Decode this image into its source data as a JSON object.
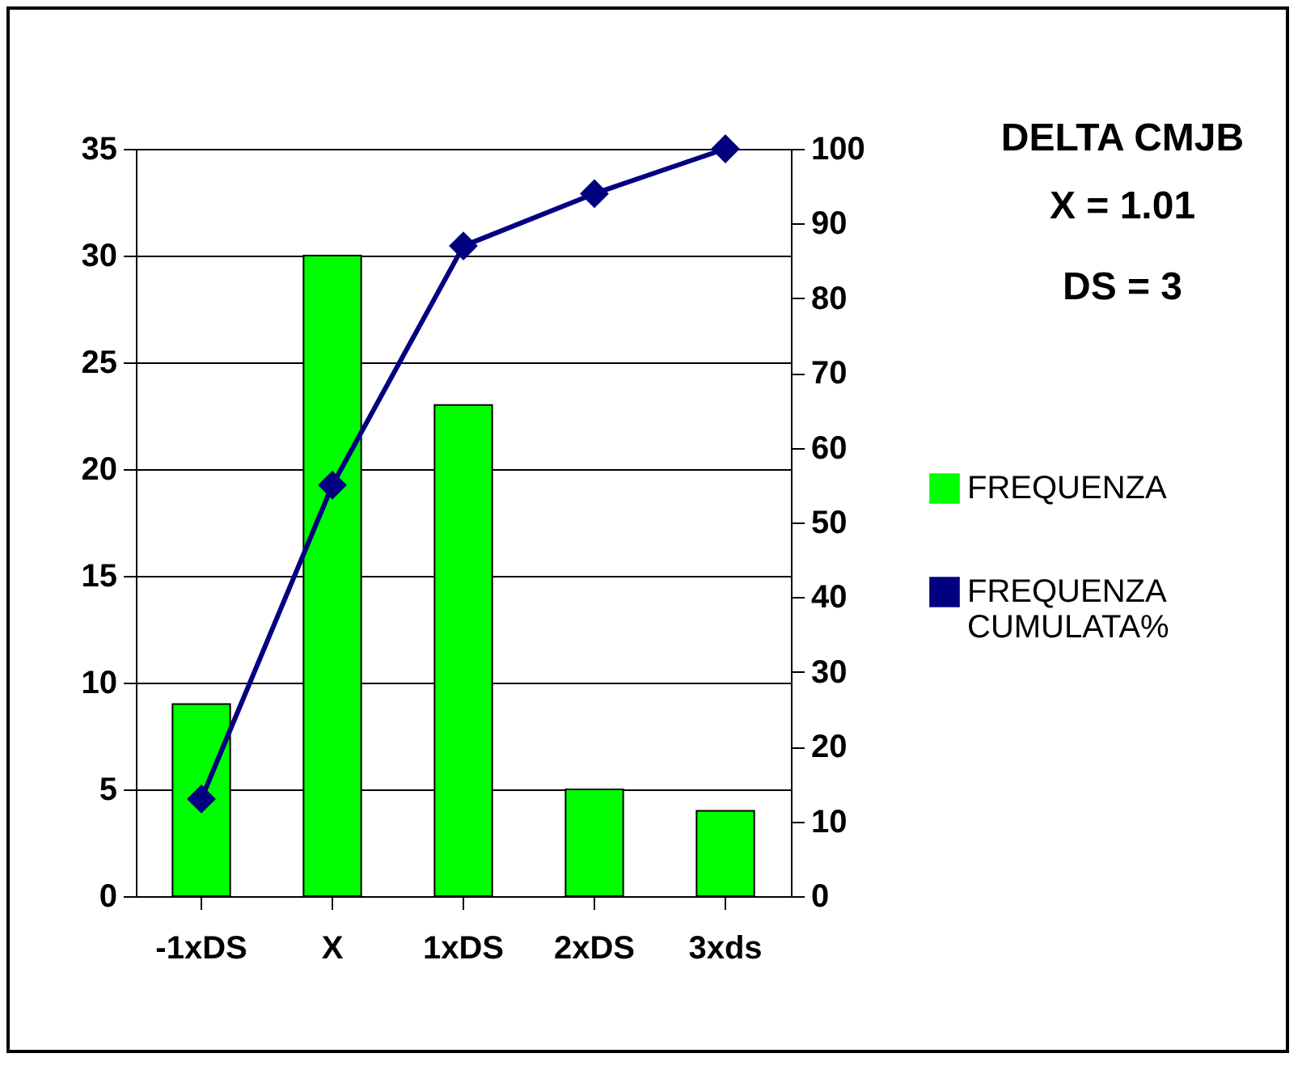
{
  "chart_data": {
    "type": "bar",
    "title": "DELTA CMJB",
    "annotations": [
      "X = 1.01",
      "DS = 3"
    ],
    "categories": [
      "-1xDS",
      "X",
      "1xDS",
      "2xDS",
      "3xds"
    ],
    "series": [
      {
        "name": "FREQUENZA",
        "color": "#00ff00",
        "values": [
          9,
          30,
          23,
          5,
          4
        ]
      },
      {
        "name": "FREQUENZA CUMULATA%",
        "type": "line",
        "axis": "y2",
        "color": "#000080",
        "values": [
          13,
          55,
          87,
          94,
          100
        ]
      }
    ],
    "ylim": [
      0,
      35
    ],
    "yticks": [
      0,
      5,
      10,
      15,
      20,
      25,
      30,
      35
    ],
    "y2lim": [
      0,
      100
    ],
    "y2ticks": [
      0,
      10,
      20,
      30,
      40,
      50,
      60,
      70,
      80,
      90,
      100
    ],
    "grid": "y",
    "legend": "right",
    "marker": "diamond"
  }
}
